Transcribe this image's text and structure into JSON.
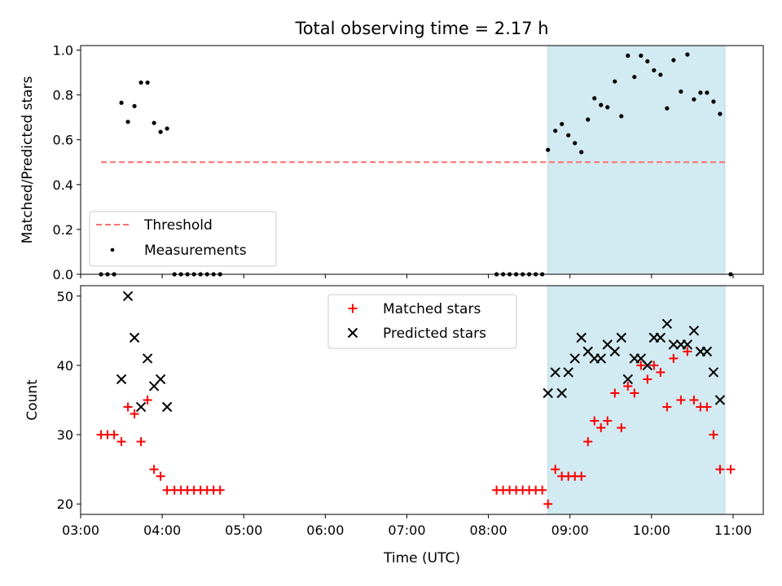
{
  "title": "Total observing time = 2.17 h",
  "colors": {
    "threshold": "#ff6f6f",
    "measurement": "#000000",
    "matched": "#ff0000",
    "predicted": "#000000",
    "observing_span": "#add8e6"
  },
  "chart_data": [
    {
      "type": "scatter",
      "ylabel": "Matched/Predicted stars",
      "xlabel": "",
      "xlim": [
        3.0,
        11.37
      ],
      "ylim": [
        0.0,
        1.02
      ],
      "yticks": [
        "0.0",
        "0.2",
        "0.4",
        "0.6",
        "0.8",
        "1.0"
      ],
      "grid": false,
      "legend_position": "lower-left",
      "shaded_span": [
        8.73,
        10.9
      ],
      "threshold": {
        "name": "Threshold",
        "y": 0.5,
        "x": [
          3.25,
          10.9
        ],
        "style": "dashed"
      },
      "series": [
        {
          "name": "Measurements",
          "points": [
            [
              3.25,
              0.0
            ],
            [
              3.33,
              0.0
            ],
            [
              3.41,
              0.0
            ],
            [
              3.5,
              0.765
            ],
            [
              3.58,
              0.68
            ],
            [
              3.66,
              0.75
            ],
            [
              3.74,
              0.855
            ],
            [
              3.82,
              0.855
            ],
            [
              3.9,
              0.675
            ],
            [
              3.98,
              0.635
            ],
            [
              4.06,
              0.65
            ],
            [
              4.15,
              0.0
            ],
            [
              4.23,
              0.0
            ],
            [
              4.31,
              0.0
            ],
            [
              4.39,
              0.0
            ],
            [
              4.47,
              0.0
            ],
            [
              4.55,
              0.0
            ],
            [
              4.63,
              0.0
            ],
            [
              4.71,
              0.0
            ],
            [
              8.1,
              0.0
            ],
            [
              8.18,
              0.0
            ],
            [
              8.26,
              0.0
            ],
            [
              8.34,
              0.0
            ],
            [
              8.42,
              0.0
            ],
            [
              8.5,
              0.0
            ],
            [
              8.58,
              0.0
            ],
            [
              8.66,
              0.0
            ],
            [
              8.73,
              0.555
            ],
            [
              8.82,
              0.64
            ],
            [
              8.9,
              0.67
            ],
            [
              8.98,
              0.62
            ],
            [
              9.06,
              0.585
            ],
            [
              9.14,
              0.545
            ],
            [
              9.22,
              0.69
            ],
            [
              9.3,
              0.785
            ],
            [
              9.38,
              0.755
            ],
            [
              9.46,
              0.745
            ],
            [
              9.55,
              0.86
            ],
            [
              9.63,
              0.705
            ],
            [
              9.71,
              0.975
            ],
            [
              9.79,
              0.88
            ],
            [
              9.87,
              0.975
            ],
            [
              9.95,
              0.95
            ],
            [
              10.03,
              0.91
            ],
            [
              10.11,
              0.89
            ],
            [
              10.19,
              0.74
            ],
            [
              10.27,
              0.955
            ],
            [
              10.36,
              0.815
            ],
            [
              10.44,
              0.98
            ],
            [
              10.52,
              0.78
            ],
            [
              10.6,
              0.81
            ],
            [
              10.68,
              0.81
            ],
            [
              10.76,
              0.77
            ],
            [
              10.84,
              0.715
            ],
            [
              10.97,
              0.0
            ]
          ]
        }
      ]
    },
    {
      "type": "scatter",
      "ylabel": "Count",
      "xlabel": "Time (UTC)",
      "xlim": [
        3.0,
        11.37
      ],
      "ylim": [
        18.5,
        51.5
      ],
      "xticks": [
        "03:00",
        "04:00",
        "05:00",
        "06:00",
        "07:00",
        "08:00",
        "09:00",
        "10:00",
        "11:00"
      ],
      "yticks": [
        "20",
        "30",
        "40",
        "50"
      ],
      "grid": false,
      "legend_position": "upper-center",
      "shaded_span": [
        8.73,
        10.9
      ],
      "series": [
        {
          "name": "Matched stars",
          "marker": "plus",
          "points": [
            [
              3.25,
              30
            ],
            [
              3.33,
              30
            ],
            [
              3.41,
              30
            ],
            [
              3.5,
              29
            ],
            [
              3.58,
              34
            ],
            [
              3.66,
              33
            ],
            [
              3.74,
              29
            ],
            [
              3.82,
              35
            ],
            [
              3.9,
              25
            ],
            [
              3.98,
              24
            ],
            [
              4.06,
              22
            ],
            [
              4.15,
              22
            ],
            [
              4.23,
              22
            ],
            [
              4.31,
              22
            ],
            [
              4.39,
              22
            ],
            [
              4.47,
              22
            ],
            [
              4.55,
              22
            ],
            [
              4.63,
              22
            ],
            [
              4.71,
              22
            ],
            [
              8.1,
              22
            ],
            [
              8.18,
              22
            ],
            [
              8.26,
              22
            ],
            [
              8.34,
              22
            ],
            [
              8.42,
              22
            ],
            [
              8.5,
              22
            ],
            [
              8.58,
              22
            ],
            [
              8.66,
              22
            ],
            [
              8.73,
              20
            ],
            [
              8.82,
              25
            ],
            [
              8.9,
              24
            ],
            [
              8.98,
              24
            ],
            [
              9.06,
              24
            ],
            [
              9.14,
              24
            ],
            [
              9.22,
              29
            ],
            [
              9.3,
              32
            ],
            [
              9.38,
              31
            ],
            [
              9.46,
              32
            ],
            [
              9.55,
              36
            ],
            [
              9.63,
              31
            ],
            [
              9.71,
              37
            ],
            [
              9.79,
              36
            ],
            [
              9.87,
              40
            ],
            [
              9.95,
              38
            ],
            [
              10.03,
              40
            ],
            [
              10.11,
              39
            ],
            [
              10.19,
              34
            ],
            [
              10.27,
              41
            ],
            [
              10.36,
              35
            ],
            [
              10.44,
              42
            ],
            [
              10.52,
              35
            ],
            [
              10.6,
              34
            ],
            [
              10.68,
              34
            ],
            [
              10.76,
              30
            ],
            [
              10.84,
              25
            ],
            [
              10.97,
              25
            ]
          ]
        },
        {
          "name": "Predicted stars",
          "marker": "x",
          "points": [
            [
              3.5,
              38
            ],
            [
              3.58,
              50
            ],
            [
              3.66,
              44
            ],
            [
              3.74,
              34
            ],
            [
              3.82,
              41
            ],
            [
              3.9,
              37
            ],
            [
              3.98,
              38
            ],
            [
              4.06,
              34
            ],
            [
              8.73,
              36
            ],
            [
              8.82,
              39
            ],
            [
              8.9,
              36
            ],
            [
              8.98,
              39
            ],
            [
              9.06,
              41
            ],
            [
              9.14,
              44
            ],
            [
              9.22,
              42
            ],
            [
              9.3,
              41
            ],
            [
              9.38,
              41
            ],
            [
              9.46,
              43
            ],
            [
              9.55,
              42
            ],
            [
              9.63,
              44
            ],
            [
              9.71,
              38
            ],
            [
              9.79,
              41
            ],
            [
              9.87,
              41
            ],
            [
              9.95,
              40
            ],
            [
              10.03,
              44
            ],
            [
              10.11,
              44
            ],
            [
              10.19,
              46
            ],
            [
              10.27,
              43
            ],
            [
              10.36,
              43
            ],
            [
              10.44,
              43
            ],
            [
              10.52,
              45
            ],
            [
              10.6,
              42
            ],
            [
              10.68,
              42
            ],
            [
              10.76,
              39
            ],
            [
              10.84,
              35
            ]
          ]
        }
      ]
    }
  ]
}
